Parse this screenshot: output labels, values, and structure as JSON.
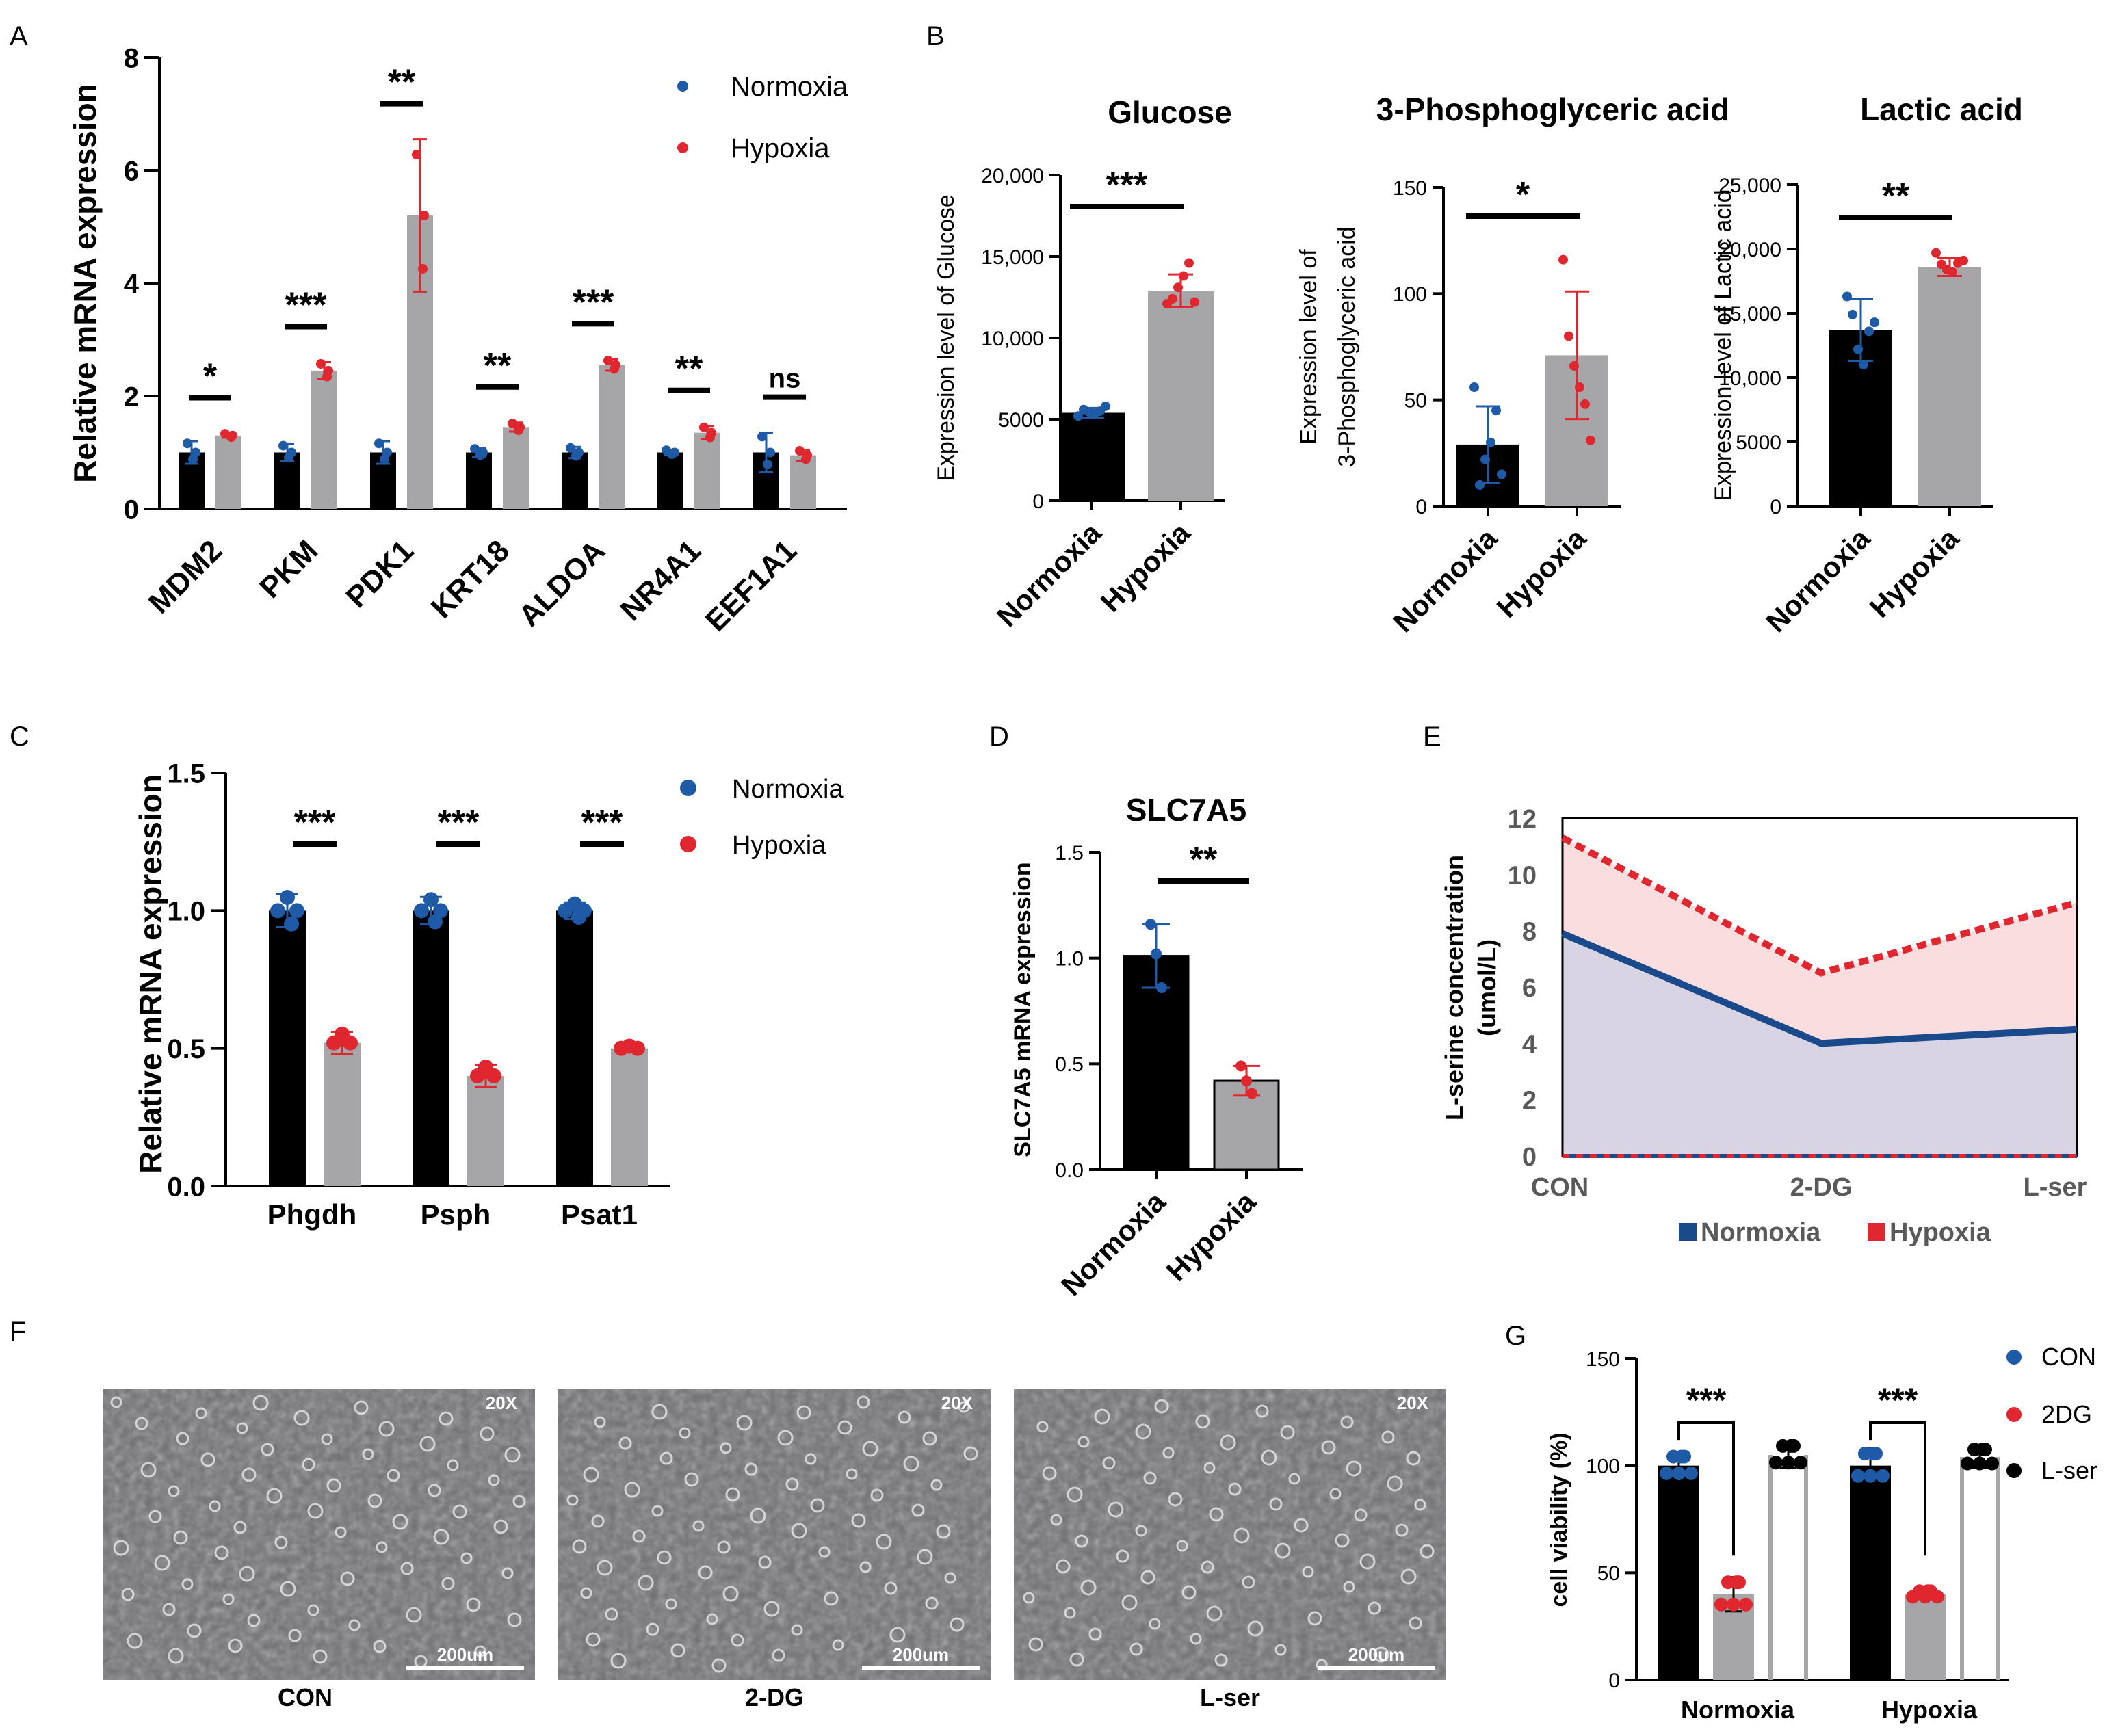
{
  "colors": {
    "bar_normoxia": "#000000",
    "bar_hypoxia": "#a6a6a8",
    "dot_normoxia": "#1f5aa6",
    "dot_hypoxia": "#e0262e",
    "dot_lser": "#000000",
    "area_hypoxia": "#fadddf",
    "area_normoxia": "#d8d4e4",
    "line_normoxia": "#1a4a8c",
    "line_hypoxia": "#e0262e"
  },
  "panels": {
    "A": {
      "letter": "A",
      "ylabel": "Relative mRNA expression",
      "yticks": [
        "0",
        "2",
        "4",
        "6",
        "8"
      ],
      "legend": [
        "Normoxia",
        "Hypoxia"
      ]
    },
    "B": {
      "letter": "B",
      "sub": [
        {
          "title": "Glucose",
          "ylabel1": "Expression level of Glucose",
          "ylabel2": "",
          "yticks": [
            "0",
            "5000",
            "10,000",
            "15,000",
            "20,000"
          ],
          "xticks": [
            "Normoxia",
            "Hypoxia"
          ]
        },
        {
          "title": "3-Phosphoglyceric acid",
          "ylabel1": "Expression level of",
          "ylabel2": "3-Phosphoglyceric acid",
          "yticks": [
            "0",
            "50",
            "100",
            "150"
          ],
          "xticks": [
            "Normoxia",
            "Hypoxia"
          ]
        },
        {
          "title": "Lactic acid",
          "ylabel1": "Expression level of Lactic acid",
          "ylabel2": "",
          "yticks": [
            "0",
            "5000",
            "10,000",
            "15,000",
            "20,000",
            "25,000"
          ],
          "xticks": [
            "Normoxia",
            "Hypoxia"
          ]
        }
      ]
    },
    "C": {
      "letter": "C",
      "ylabel": "Relative mRNA expression",
      "yticks": [
        "0.0",
        "0.5",
        "1.0",
        "1.5"
      ],
      "legend": [
        "Normoxia",
        "Hypoxia"
      ]
    },
    "D": {
      "letter": "D",
      "title": "SLC7A5",
      "ylabel": "SLC7A5 mRNA expression",
      "yticks": [
        "0.0",
        "0.5",
        "1.0",
        "1.5"
      ],
      "xticks": [
        "Normoxia",
        "Hypoxia"
      ]
    },
    "E": {
      "letter": "E",
      "ylabel1": "L-serine concentration",
      "ylabel2": "(umol/L)",
      "yticks": [
        "0",
        "2",
        "4",
        "6",
        "8",
        "10",
        "12"
      ],
      "legend": [
        "Normoxia",
        "Hypoxia"
      ]
    },
    "F": {
      "letter": "F",
      "images": [
        {
          "label": "CON",
          "mag": "20X",
          "scale": "200um"
        },
        {
          "label": "2-DG",
          "mag": "20X",
          "scale": "200um"
        },
        {
          "label": "L-ser",
          "mag": "20X",
          "scale": "200um"
        }
      ]
    },
    "G": {
      "letter": "G",
      "ylabel": "cell viability (%)",
      "yticks": [
        "0",
        "50",
        "100",
        "150"
      ],
      "legend": [
        "CON",
        "2DG",
        "L-ser"
      ]
    }
  },
  "chart_data": [
    {
      "panel": "A",
      "type": "bar",
      "categories": [
        "MDM2",
        "PKM",
        "PDK1",
        "KRT18",
        "ALDOA",
        "NR4A1",
        "EEF1A1"
      ],
      "series": [
        {
          "name": "Normoxia",
          "values": [
            1.0,
            1.0,
            1.0,
            1.0,
            1.0,
            1.0,
            1.0
          ]
        },
        {
          "name": "Hypoxia",
          "values": [
            1.3,
            2.45,
            5.2,
            1.45,
            2.55,
            1.35,
            0.95
          ]
        }
      ],
      "errors": [
        [
          0.2,
          0.15,
          0.2,
          0.08,
          0.1,
          0.05,
          0.35
        ],
        [
          0.04,
          0.15,
          1.35,
          0.08,
          0.1,
          0.12,
          0.1
        ]
      ],
      "sig": [
        "*",
        "***",
        "**",
        "**",
        "***",
        "**",
        "ns"
      ],
      "ylabel": "Relative mRNA expression",
      "ylim": [
        0,
        8
      ]
    },
    {
      "panel": "B1",
      "type": "bar",
      "title": "Glucose",
      "categories": [
        "Normoxia",
        "Hypoxia"
      ],
      "values": [
        5400,
        12900
      ],
      "errors": [
        300,
        1000
      ],
      "points": [
        [
          5200,
          5600,
          5450,
          5350,
          5500,
          5800
        ],
        [
          12100,
          12400,
          13100,
          13800,
          14600,
          12200
        ]
      ],
      "sig": "***",
      "ylabel": "Expression level of Glucose",
      "ylim": [
        0,
        20000
      ]
    },
    {
      "panel": "B2",
      "type": "bar",
      "title": "3-Phosphoglyceric acid",
      "categories": [
        "Normoxia",
        "Hypoxia"
      ],
      "values": [
        29,
        71
      ],
      "errors": [
        18,
        30
      ],
      "points": [
        [
          56,
          10,
          22,
          30,
          45,
          15
        ],
        [
          116,
          80,
          66,
          56,
          48,
          31
        ]
      ],
      "sig": "*",
      "ylabel": "Expression level of 3-Phosphoglyceric acid",
      "ylim": [
        0,
        150
      ]
    },
    {
      "panel": "B3",
      "type": "bar",
      "title": "Lactic acid",
      "categories": [
        "Normoxia",
        "Hypoxia"
      ],
      "values": [
        13700,
        18600
      ],
      "errors": [
        2400,
        700
      ],
      "points": [
        [
          16300,
          14900,
          12200,
          11000,
          13600,
          14300
        ],
        [
          19700,
          18800,
          18400,
          18200,
          18900,
          19100
        ]
      ],
      "sig": "**",
      "ylabel": "Expression level of Lactic acid",
      "ylim": [
        0,
        25000
      ]
    },
    {
      "panel": "C",
      "type": "bar",
      "categories": [
        "Phgdh",
        "Psph",
        "Psat1"
      ],
      "series": [
        {
          "name": "Normoxia",
          "values": [
            1.0,
            1.0,
            1.0
          ]
        },
        {
          "name": "Hypoxia",
          "values": [
            0.52,
            0.4,
            0.5
          ]
        }
      ],
      "errors": [
        [
          0.06,
          0.05,
          0.03
        ],
        [
          0.04,
          0.04,
          0.01
        ]
      ],
      "sig": [
        "***",
        "***",
        "***"
      ],
      "ylabel": "Relative mRNA expression",
      "ylim": [
        0,
        1.5
      ]
    },
    {
      "panel": "D",
      "type": "bar",
      "title": "SLC7A5",
      "categories": [
        "Normoxia",
        "Hypoxia"
      ],
      "values": [
        1.01,
        0.42
      ],
      "errors": [
        0.15,
        0.07
      ],
      "points": [
        [
          1.16,
          1.02,
          0.86
        ],
        [
          0.49,
          0.42,
          0.36
        ]
      ],
      "sig": "**",
      "ylabel": "SLC7A5 mRNA expression",
      "ylim": [
        0,
        1.5
      ]
    },
    {
      "panel": "E",
      "type": "area",
      "categories": [
        "CON",
        "2-DG",
        "L-ser"
      ],
      "series": [
        {
          "name": "Normoxia",
          "values": [
            7.9,
            4.0,
            4.5
          ]
        },
        {
          "name": "Hypoxia",
          "values": [
            11.3,
            6.5,
            9.0
          ]
        }
      ],
      "ylabel": "L-serine concentration (umol/L)",
      "ylim": [
        0,
        12
      ]
    },
    {
      "panel": "G",
      "type": "bar",
      "categories": [
        "Normoxia",
        "Hypoxia"
      ],
      "series": [
        {
          "name": "CON",
          "values": [
            100,
            100
          ]
        },
        {
          "name": "2DG",
          "values": [
            40,
            40
          ]
        },
        {
          "name": "L-ser",
          "values": [
            105,
            104
          ]
        }
      ],
      "errors": [
        [
          6,
          8
        ],
        [
          8,
          2
        ],
        [
          6,
          5
        ]
      ],
      "sig": [
        "***",
        "***"
      ],
      "ylabel": "cell viability (%)",
      "ylim": [
        0,
        150
      ]
    }
  ]
}
